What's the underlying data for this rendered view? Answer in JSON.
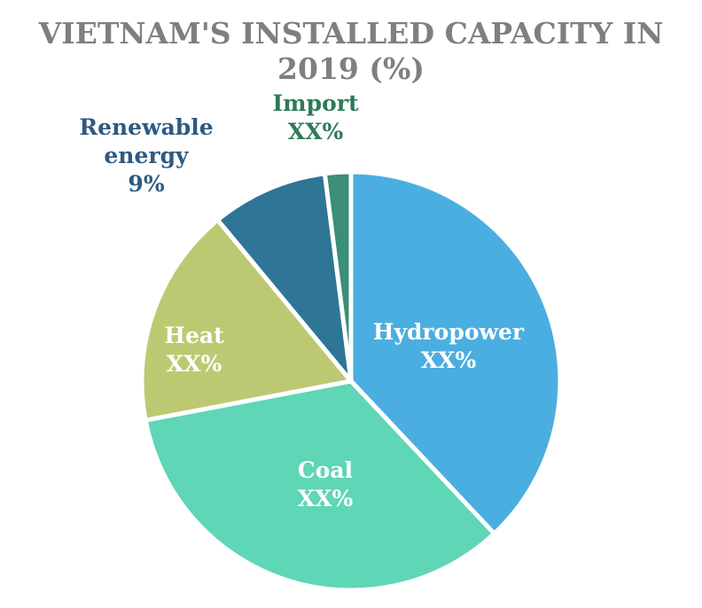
{
  "chart_data": {
    "type": "pie",
    "title": "VIETNAM'S INSTALLED CAPACITY IN 2019 (%)",
    "title_lines": [
      "VIETNAM'S INSTALLED CAPACITY IN",
      "2019 (%)"
    ],
    "start_angle_deg": 0,
    "direction": "clockwise",
    "slices": [
      {
        "name": "Hydropower",
        "label_lines": [
          "Hydropower",
          "XX%"
        ],
        "value": 38,
        "color": "#4baee0",
        "label_color": "#ffffff",
        "label_inside": true
      },
      {
        "name": "Coal",
        "label_lines": [
          "Coal",
          "XX%"
        ],
        "value": 34,
        "color": "#5fd6b5",
        "label_color": "#ffffff",
        "label_inside": true
      },
      {
        "name": "Heat",
        "label_lines": [
          "Heat",
          "XX%"
        ],
        "value": 17,
        "color": "#bdc972",
        "label_color": "#ffffff",
        "label_inside": true
      },
      {
        "name": "Renewable energy",
        "label_lines": [
          "Renewable",
          "energy",
          "9%"
        ],
        "value": 9,
        "color": "#2e7596",
        "label_color": "#2e5a82",
        "label_inside": false
      },
      {
        "name": "Import",
        "label_lines": [
          "Import",
          "XX%"
        ],
        "value": 2,
        "color": "#3a8f76",
        "label_color": "#2f7a58",
        "label_inside": false
      }
    ]
  }
}
